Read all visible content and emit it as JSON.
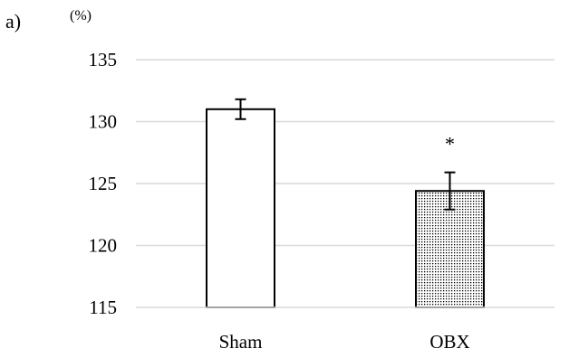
{
  "chart_data": {
    "type": "bar",
    "panel_label": "a)",
    "y_unit": "(%)",
    "categories": [
      "Sham",
      "OBX"
    ],
    "values": [
      131.0,
      124.4
    ],
    "error": [
      0.8,
      1.5
    ],
    "annotations": [
      "",
      "*"
    ],
    "ylim": [
      115,
      135
    ],
    "yticks": [
      115,
      120,
      125,
      130,
      135
    ],
    "grid": true,
    "legend": "none",
    "bar_styles": [
      "white-fill",
      "dotted-fill"
    ],
    "colors": {
      "axis": "#000000",
      "grid": "#d9d9d9",
      "bar_edge": "#000000",
      "bar_fill": "#ffffff",
      "dot": "#000000"
    }
  }
}
